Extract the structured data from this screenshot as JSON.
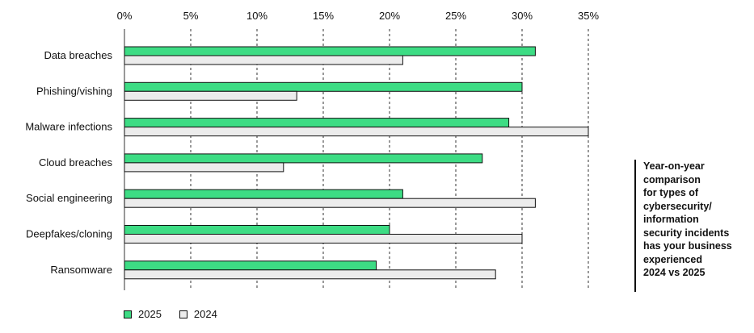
{
  "chart_data": {
    "type": "bar",
    "orientation": "horizontal",
    "categories": [
      "Data breaches",
      "Phishing/vishing",
      "Malware infections",
      "Cloud breaches",
      "Social engineering",
      "Deepfakes/cloning",
      "Ransomware"
    ],
    "series": [
      {
        "name": "2025",
        "color": "#3ddc84",
        "values": [
          31,
          30,
          29,
          27,
          21,
          20,
          19
        ]
      },
      {
        "name": "2024",
        "color": "#ececec",
        "values": [
          21,
          13,
          35,
          12,
          31,
          30,
          28
        ]
      }
    ],
    "x_ticks": [
      "0%",
      "5%",
      "10%",
      "15%",
      "20%",
      "25%",
      "30%",
      "35%"
    ],
    "xlim": [
      0,
      35
    ],
    "unit": "%",
    "grid": "vertical dashed",
    "legend_position": "bottom-left",
    "annotation": "Year-on-year comparison for types of cybersecurity/ information security incidents has your business experienced 2024 vs 2025"
  },
  "side_note_lines": [
    "Year-on-year",
    "comparison",
    "for types of",
    "cybersecurity/",
    "information",
    "security incidents",
    "has your business",
    "experienced",
    "2024 vs 2025"
  ],
  "colors": {
    "series_2025": "#3ddc84",
    "series_2024": "#ececec",
    "outline": "#111111",
    "grid": "#333333"
  }
}
